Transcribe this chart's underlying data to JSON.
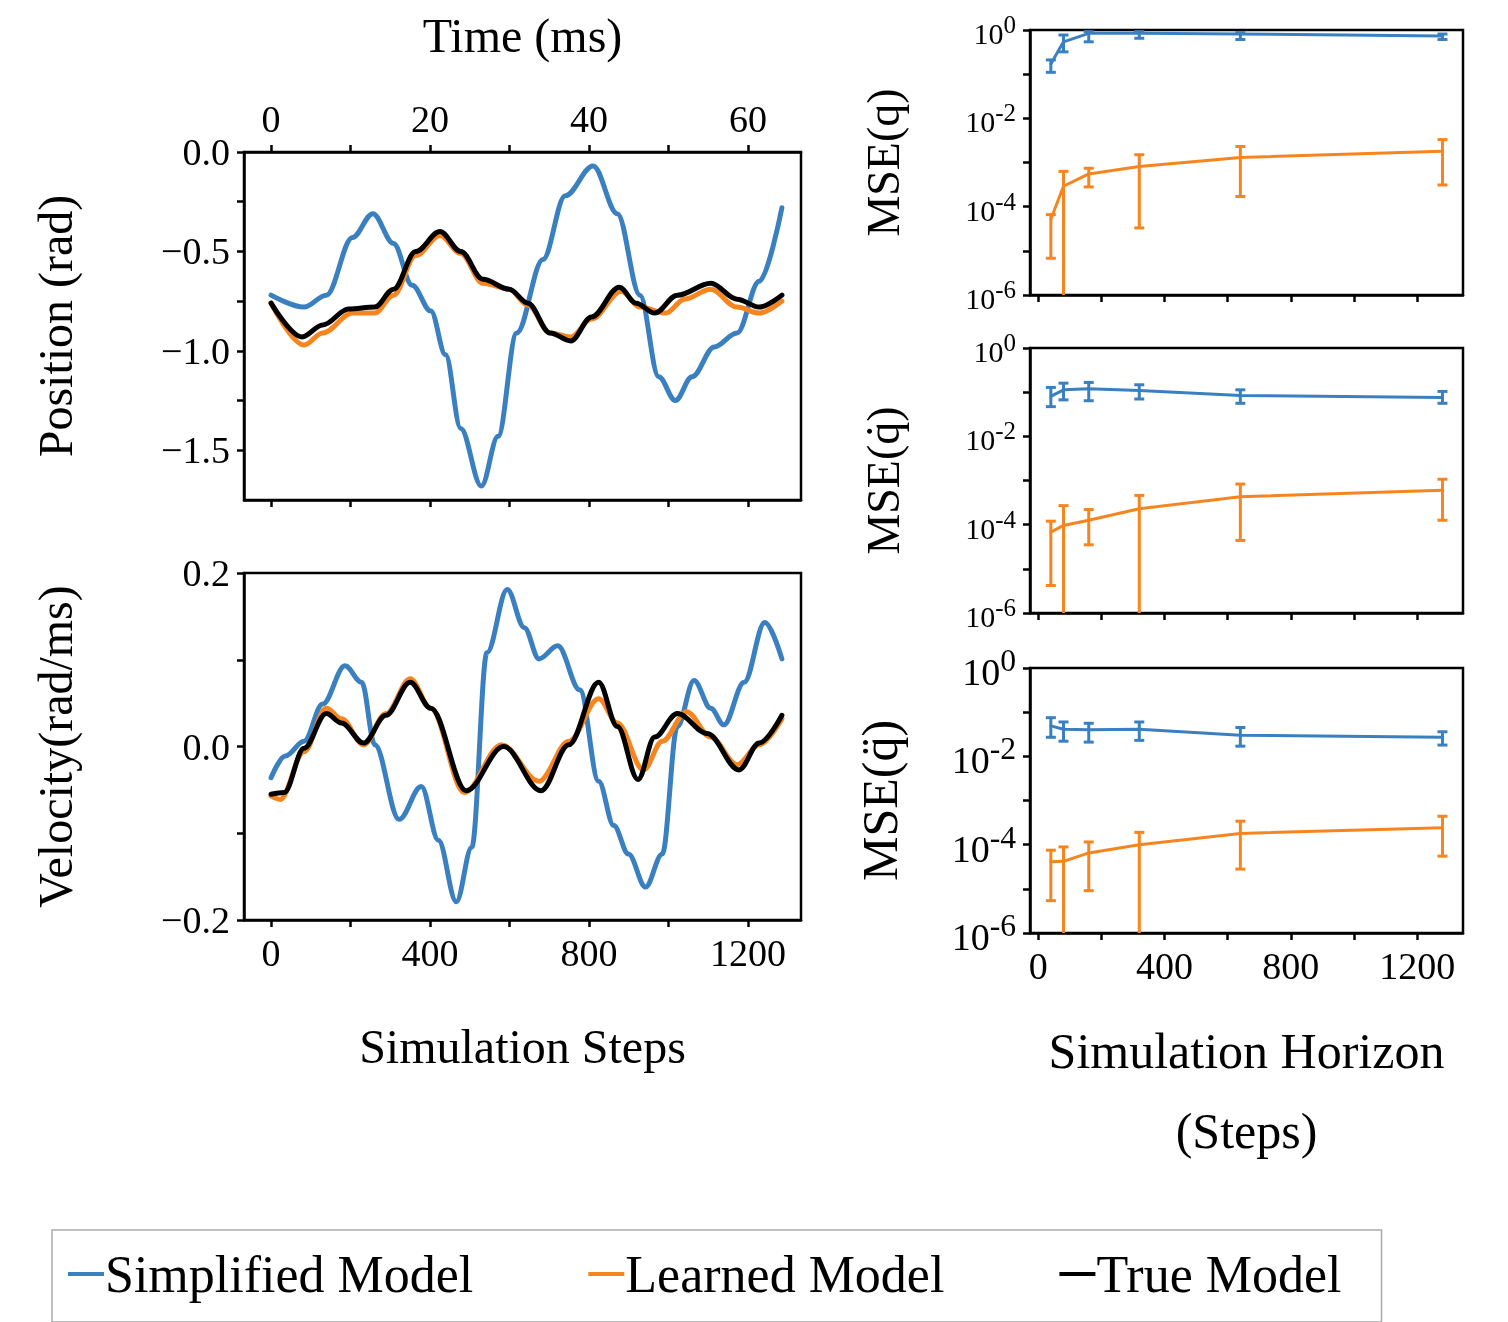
{
  "chart_data": [
    {
      "type": "line",
      "x2label": "Time (ms)",
      "ylabel": "Position (rad)",
      "tick_labels": "y",
      "xlim": [
        -68,
        1333
      ],
      "xticks": [
        0,
        {
          "value": 200,
          "label": null
        },
        400,
        {
          "value": 600,
          "label": null
        },
        800,
        {
          "value": 1000,
          "label": null
        },
        1200
      ],
      "x2lim": [
        -3.4,
        66.65
      ],
      "x2ticks": [
        0,
        {
          "value": 10,
          "label": null
        },
        20,
        {
          "value": 30,
          "label": null
        },
        40,
        {
          "value": 50,
          "label": null
        },
        60
      ],
      "ylim": [
        -1.75,
        0
      ],
      "yticks": [
        {
          "value": 0,
          "label": "0.0"
        },
        {
          "value": -0.25,
          "label": null
        },
        {
          "value": -0.5,
          "label": "−0.5"
        },
        {
          "value": -0.75,
          "label": null
        },
        {
          "value": -1,
          "label": "−1.0"
        },
        {
          "value": -1.25,
          "label": null
        },
        {
          "value": -1.5,
          "label": "−1.5"
        }
      ],
      "series": [
        {
          "color": "#3a80c1",
          "x": [
            0,
            83,
            139,
            205,
            256,
            308,
            355,
            402,
            439,
            477,
            529,
            571,
            618,
            684,
            740,
            810,
            871,
            928,
            975,
            1017,
            1059,
            1115,
            1172,
            1228,
            1285
          ],
          "values": [
            -0.72,
            -0.78,
            -0.72,
            -0.43,
            -0.31,
            -0.46,
            -0.67,
            -0.8,
            -1.02,
            -1.39,
            -1.68,
            -1.43,
            -0.91,
            -0.54,
            -0.22,
            -0.07,
            -0.31,
            -0.72,
            -1.13,
            -1.25,
            -1.13,
            -0.98,
            -0.91,
            -0.65,
            -0.28
          ]
        },
        {
          "color": "#f7851f",
          "x": [
            0,
            83,
            130,
            205,
            261,
            308,
            364,
            425,
            477,
            533,
            599,
            646,
            702,
            754,
            806,
            881,
            928,
            993,
            1040,
            1106,
            1172,
            1228,
            1285
          ],
          "values": [
            -0.76,
            -0.97,
            -0.91,
            -0.81,
            -0.81,
            -0.72,
            -0.52,
            -0.42,
            -0.51,
            -0.66,
            -0.69,
            -0.77,
            -0.91,
            -0.93,
            -0.84,
            -0.7,
            -0.78,
            -0.81,
            -0.74,
            -0.69,
            -0.78,
            -0.81,
            -0.75
          ]
        },
        {
          "color": "#000000",
          "x": [
            0,
            78,
            130,
            195,
            261,
            308,
            364,
            425,
            477,
            533,
            599,
            646,
            702,
            754,
            806,
            876,
            918,
            965,
            1022,
            1106,
            1172,
            1228,
            1285
          ],
          "values": [
            -0.76,
            -0.93,
            -0.87,
            -0.79,
            -0.78,
            -0.69,
            -0.5,
            -0.4,
            -0.5,
            -0.64,
            -0.69,
            -0.76,
            -0.91,
            -0.95,
            -0.83,
            -0.68,
            -0.76,
            -0.81,
            -0.72,
            -0.66,
            -0.74,
            -0.78,
            -0.72
          ]
        }
      ]
    },
    {
      "type": "line",
      "xlabel": "Simulation Steps",
      "ylabel": "Velocity(rad/ms)",
      "legend": "bottom",
      "xlim": [
        -68,
        1333
      ],
      "xticks": [
        0,
        {
          "value": 200,
          "label": null
        },
        400,
        {
          "value": 600,
          "label": null
        },
        800,
        {
          "value": 1000,
          "label": null
        },
        1200
      ],
      "ylim": [
        -0.2,
        0.2
      ],
      "yticks": [
        {
          "value": 0.2,
          "label": "0.2"
        },
        {
          "value": 0.1,
          "label": null
        },
        {
          "value": 0,
          "label": "0.0"
        },
        {
          "value": -0.1,
          "label": null
        },
        {
          "value": -0.2,
          "label": "−0.2"
        }
      ],
      "series": [
        {
          "name": "Simplified Model",
          "color": "#3a80c1",
          "x": [
            0,
            36,
            83,
            130,
            186,
            228,
            261,
            322,
            378,
            421,
            466,
            505,
            543,
            594,
            637,
            674,
            721,
            777,
            824,
            862,
            899,
            942,
            984,
            1022,
            1064,
            1106,
            1139,
            1190,
            1242,
            1285
          ],
          "values": [
            -0.036,
            -0.011,
            0.006,
            0.049,
            0.093,
            0.074,
            0.002,
            -0.084,
            -0.046,
            -0.108,
            -0.179,
            -0.116,
            0.108,
            0.181,
            0.137,
            0.101,
            0.116,
            0.065,
            -0.04,
            -0.091,
            -0.124,
            -0.162,
            -0.124,
            0.023,
            0.076,
            0.044,
            0.025,
            0.074,
            0.143,
            0.101
          ]
        },
        {
          "name": "Learned Model",
          "color": "#f7851f",
          "x": [
            0,
            23,
            83,
            139,
            177,
            233,
            289,
            350,
            402,
            486,
            580,
            674,
            749,
            824,
            871,
            937,
            984,
            1045,
            1106,
            1172,
            1228,
            1285
          ],
          "values": [
            -0.057,
            -0.061,
            -0.006,
            0.044,
            0.032,
            0.002,
            0.038,
            0.078,
            0.044,
            -0.053,
            0.002,
            -0.04,
            0.006,
            0.055,
            0.027,
            -0.027,
            0.006,
            0.04,
            0.011,
            -0.021,
            0.002,
            0.032
          ]
        },
        {
          "name": "True Model",
          "color": "#000000",
          "x": [
            0,
            33,
            83,
            139,
            177,
            233,
            289,
            350,
            402,
            491,
            585,
            679,
            749,
            824,
            871,
            923,
            965,
            1022,
            1097,
            1177,
            1228,
            1285
          ],
          "values": [
            -0.055,
            -0.053,
            -0.002,
            0.038,
            0.027,
            0.004,
            0.036,
            0.074,
            0.044,
            -0.051,
            0,
            -0.051,
            0.002,
            0.074,
            0.023,
            -0.038,
            0.011,
            0.038,
            0.015,
            -0.027,
            0.004,
            0.036
          ]
        }
      ]
    },
    {
      "type": "line",
      "ylabel": "MSE(q)",
      "log": "y",
      "tick_labels": "y",
      "xlim": [
        -26,
        1345
      ],
      "xticks": [
        0,
        {
          "value": 200,
          "label": null
        },
        400,
        {
          "value": 600,
          "label": null
        },
        800,
        {
          "value": 1000,
          "label": null
        },
        1200
      ],
      "ylim": [
        1e-06,
        1
      ],
      "yticks": [
        {
          "value": 1,
          "label": "10$^{0}$"
        },
        {
          "value": 0.1,
          "label": null
        },
        {
          "value": 0.01,
          "label": "10$^{-2}$"
        },
        {
          "value": 0.001,
          "label": null
        },
        {
          "value": 0.0001,
          "label": "10$^{-4}$"
        },
        {
          "value": 1e-05,
          "label": null
        },
        {
          "value": 1e-06,
          "label": "10$^{-6}$"
        }
      ],
      "x": [
        40,
        80,
        160,
        320,
        640,
        1280
      ],
      "series": [
        {
          "color": "#3a80c1",
          "values": [
            0.17,
            0.54,
            0.84,
            0.84,
            0.81,
            0.73
          ],
          "errors": [
            [
              0.11,
              0.21
            ],
            [
              0.32,
              0.77
            ],
            [
              0.54,
              0.92
            ],
            [
              0.65,
              0.92
            ],
            [
              0.61,
              0.87
            ],
            [
              0.61,
              0.81
            ]
          ]
        },
        {
          "color": "#f7851f",
          "values": [
            5.2e-05,
            0.00029,
            0.00055,
            0.00081,
            0.0013,
            0.0018
          ],
          "errors": [
            [
              6.8e-06,
              6.6e-05
            ],
            [
              1e-06,
              0.00063
            ],
            [
              0.00028,
              0.00074
            ],
            [
              3.3e-05,
              0.0015
            ],
            [
              0.00017,
              0.0023
            ],
            [
              0.00031,
              0.0033
            ]
          ]
        }
      ]
    },
    {
      "type": "line",
      "ylabel": "MSE(q̇)",
      "log": "y",
      "tick_labels": "y",
      "xlim": [
        -26,
        1345
      ],
      "xticks": [
        0,
        {
          "value": 200,
          "label": null
        },
        400,
        {
          "value": 600,
          "label": null
        },
        800,
        {
          "value": 1000,
          "label": null
        },
        1200
      ],
      "ylim": [
        1e-06,
        1
      ],
      "yticks": [
        {
          "value": 1,
          "label": "10$^{0}$"
        },
        {
          "value": 0.1,
          "label": null
        },
        {
          "value": 0.01,
          "label": "10$^{-2}$"
        },
        {
          "value": 0.001,
          "label": null
        },
        {
          "value": 0.0001,
          "label": "10$^{-4}$"
        },
        {
          "value": 1e-05,
          "label": null
        },
        {
          "value": 1e-06,
          "label": "10$^{-6}$"
        }
      ],
      "x": [
        40,
        80,
        160,
        320,
        640,
        1280
      ],
      "series": [
        {
          "color": "#3a80c1",
          "values": [
            0.08,
            0.113,
            0.119,
            0.109,
            0.084,
            0.076
          ],
          "errors": [
            [
              0.047,
              0.128
            ],
            [
              0.067,
              0.16
            ],
            [
              0.064,
              0.166
            ],
            [
              0.07,
              0.147
            ],
            [
              0.056,
              0.113
            ],
            [
              0.056,
              0.104
            ]
          ]
        },
        {
          "color": "#f7851f",
          "values": [
            6.8e-05,
            9.6e-05,
            0.000126,
            0.00023,
            0.00043,
            0.0006
          ],
          "errors": [
            [
              4.2e-06,
              0.00012
            ],
            [
              1e-06,
              0.00027
            ],
            [
              3.5e-05,
              0.00022
            ],
            [
              1e-06,
              0.00046
            ],
            [
              4.4e-05,
              0.00083
            ],
            [
              0.000126,
              0.00107
            ]
          ]
        }
      ]
    },
    {
      "type": "line",
      "xlabel": "Simulation Horizon\n(Steps)",
      "ylabel": "MSE(q̈)",
      "log": "y",
      "xlim": [
        -26,
        1345
      ],
      "xticks": [
        0,
        {
          "value": 200,
          "label": null
        },
        400,
        {
          "value": 600,
          "label": null
        },
        800,
        {
          "value": 1000,
          "label": null
        },
        1200
      ],
      "ylim": [
        1e-06,
        1
      ],
      "yticks": [
        {
          "value": 1,
          "label": "10$^{0}$"
        },
        {
          "value": 0.1,
          "label": null
        },
        {
          "value": 0.01,
          "label": "10$^{-2}$"
        },
        {
          "value": 0.001,
          "label": null
        },
        {
          "value": 0.0001,
          "label": "10$^{-4}$"
        },
        {
          "value": 1e-05,
          "label": null
        },
        {
          "value": 1e-06,
          "label": "10$^{-6}$"
        }
      ],
      "x": [
        40,
        80,
        160,
        320,
        640,
        1280
      ],
      "series": [
        {
          "color": "#3a80c1",
          "values": [
            0.049,
            0.041,
            0.04,
            0.041,
            0.03,
            0.027
          ],
          "errors": [
            [
              0.027,
              0.075
            ],
            [
              0.022,
              0.06
            ],
            [
              0.021,
              0.056
            ],
            [
              0.023,
              0.06
            ],
            [
              0.017,
              0.045
            ],
            [
              0.018,
              0.036
            ]
          ]
        },
        {
          "color": "#f7851f",
          "values": [
            4.1e-05,
            4.2e-05,
            6.5e-05,
            0.0001,
            0.00018,
            0.00024
          ],
          "errors": [
            [
              5.4e-06,
              7.5e-05
            ],
            [
              1e-06,
              8.9e-05
            ],
            [
              9.1e-06,
              0.000115
            ],
            [
              1e-06,
              0.00019
            ],
            [
              2.8e-05,
              0.00034
            ],
            [
              5.5e-05,
              0.00044
            ]
          ]
        }
      ]
    }
  ]
}
